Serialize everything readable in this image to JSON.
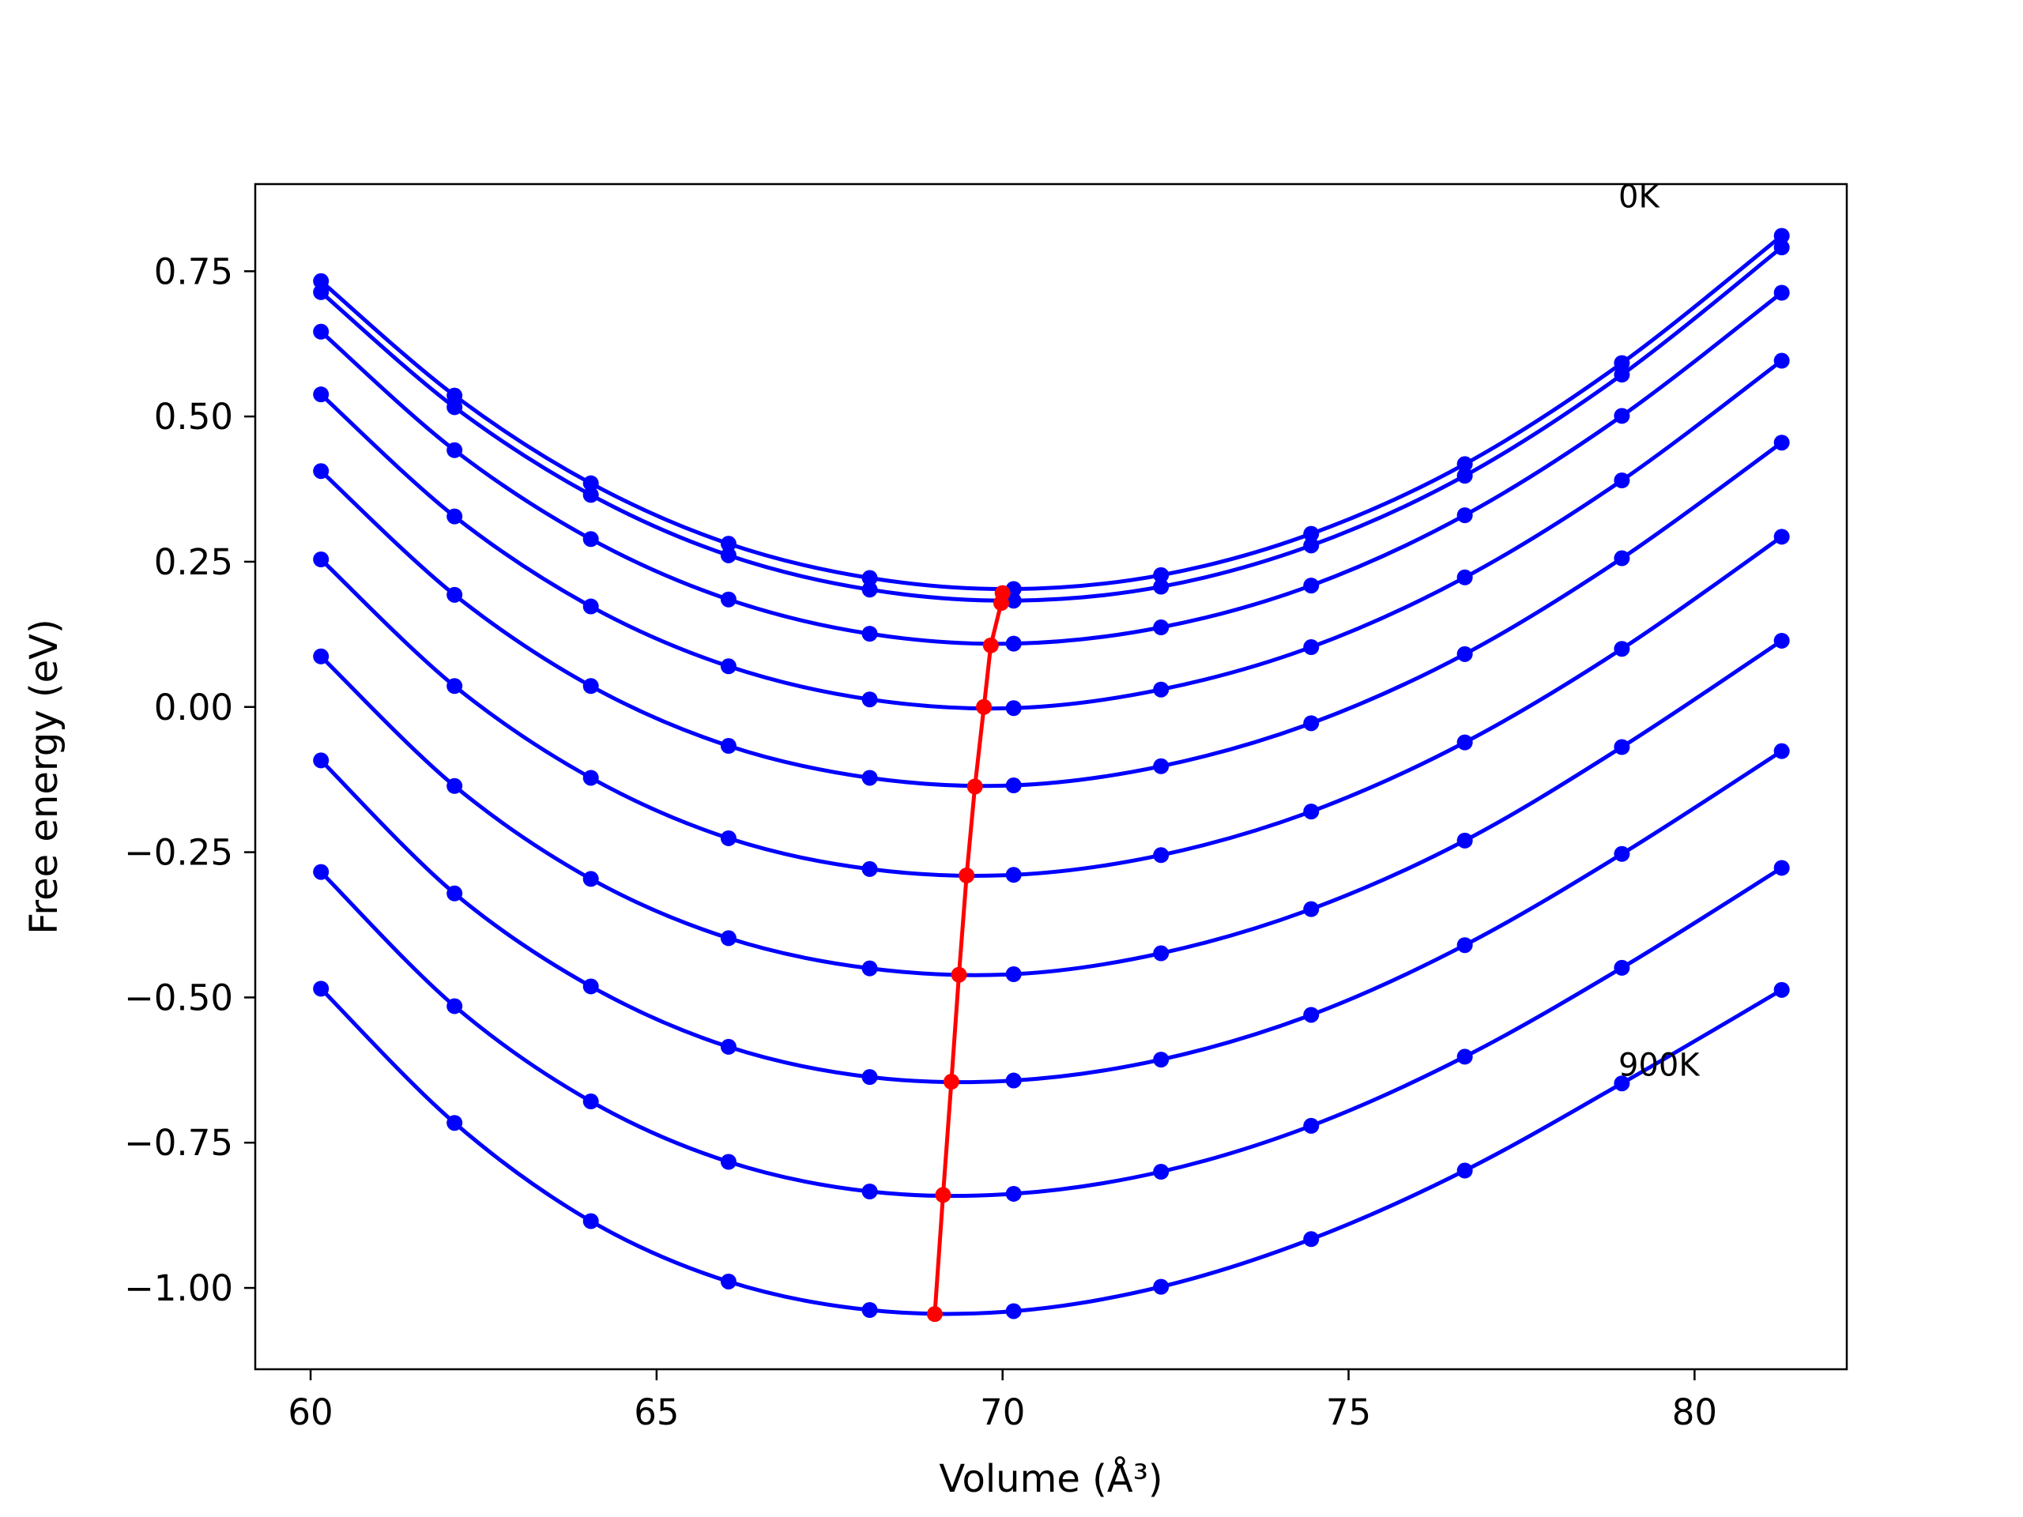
{
  "chart_data": {
    "type": "line",
    "title": "",
    "xlabel": "Volume (Å³)",
    "ylabel": "Free energy (eV)",
    "xlim": [
      59.2,
      82.2
    ],
    "ylim": [
      -1.14,
      0.9
    ],
    "xticks": [
      60,
      65,
      70,
      75,
      80
    ],
    "xtick_labels": [
      "60",
      "65",
      "70",
      "75",
      "80"
    ],
    "yticks": [
      0.75,
      0.5,
      0.25,
      0.0,
      -0.25,
      -0.5,
      -0.75,
      -1.0
    ],
    "ytick_labels": [
      "0.75",
      "0.50",
      "0.25",
      "0.00",
      "−0.25",
      "−0.50",
      "−0.75",
      "−1.00"
    ],
    "grid": false,
    "annotations": [
      {
        "text": "0K",
        "x": 78.9,
        "y": 0.86
      },
      {
        "text": "900K",
        "x": 78.9,
        "y": -0.635
      }
    ],
    "volumes": [
      60.15,
      62.08,
      64.05,
      66.04,
      68.08,
      70.16,
      72.29,
      74.46,
      76.68,
      78.95,
      81.26
    ],
    "series": [
      {
        "color": "#0000ff",
        "values": [
          0.733,
          0.536,
          0.385,
          0.281,
          0.222,
          0.203,
          0.227,
          0.298,
          0.418,
          0.592,
          0.811
        ]
      },
      {
        "color": "#0000ff",
        "values": [
          0.714,
          0.516,
          0.365,
          0.261,
          0.202,
          0.183,
          0.207,
          0.278,
          0.398,
          0.572,
          0.791
        ]
      },
      {
        "color": "#0000ff",
        "values": [
          0.646,
          0.442,
          0.289,
          0.185,
          0.126,
          0.109,
          0.137,
          0.209,
          0.33,
          0.501,
          0.713
        ]
      },
      {
        "color": "#0000ff",
        "values": [
          0.538,
          0.328,
          0.173,
          0.07,
          0.013,
          -0.002,
          0.03,
          0.103,
          0.223,
          0.39,
          0.596
        ]
      },
      {
        "color": "#0000ff",
        "values": [
          0.406,
          0.193,
          0.036,
          -0.067,
          -0.122,
          -0.135,
          -0.102,
          -0.028,
          0.091,
          0.256,
          0.455
        ]
      },
      {
        "color": "#0000ff",
        "values": [
          0.254,
          0.036,
          -0.122,
          -0.226,
          -0.279,
          -0.289,
          -0.255,
          -0.18,
          -0.061,
          0.1,
          0.293
        ]
      },
      {
        "color": "#0000ff",
        "values": [
          0.087,
          -0.136,
          -0.296,
          -0.398,
          -0.45,
          -0.46,
          -0.424,
          -0.348,
          -0.23,
          -0.069,
          0.114
        ]
      },
      {
        "color": "#0000ff",
        "values": [
          -0.092,
          -0.321,
          -0.481,
          -0.585,
          -0.637,
          -0.643,
          -0.607,
          -0.53,
          -0.41,
          -0.253,
          -0.076
        ]
      },
      {
        "color": "#0000ff",
        "values": [
          -0.284,
          -0.515,
          -0.679,
          -0.783,
          -0.834,
          -0.838,
          -0.8,
          -0.721,
          -0.602,
          -0.449,
          -0.277
        ]
      },
      {
        "color": "#0000ff",
        "values": [
          -0.485,
          -0.716,
          -0.885,
          -0.989,
          -1.038,
          -1.04,
          -0.998,
          -0.916,
          -0.798,
          -0.648,
          -0.487
        ]
      }
    ],
    "equilibrium": {
      "color": "#ff0000",
      "x": [
        70.0,
        69.98,
        69.83,
        69.73,
        69.6,
        69.48,
        69.37,
        69.26,
        69.14,
        69.02
      ],
      "y": [
        0.196,
        0.179,
        0.106,
        0.0,
        -0.137,
        -0.29,
        -0.461,
        -0.645,
        -0.84,
        -1.045
      ]
    }
  }
}
